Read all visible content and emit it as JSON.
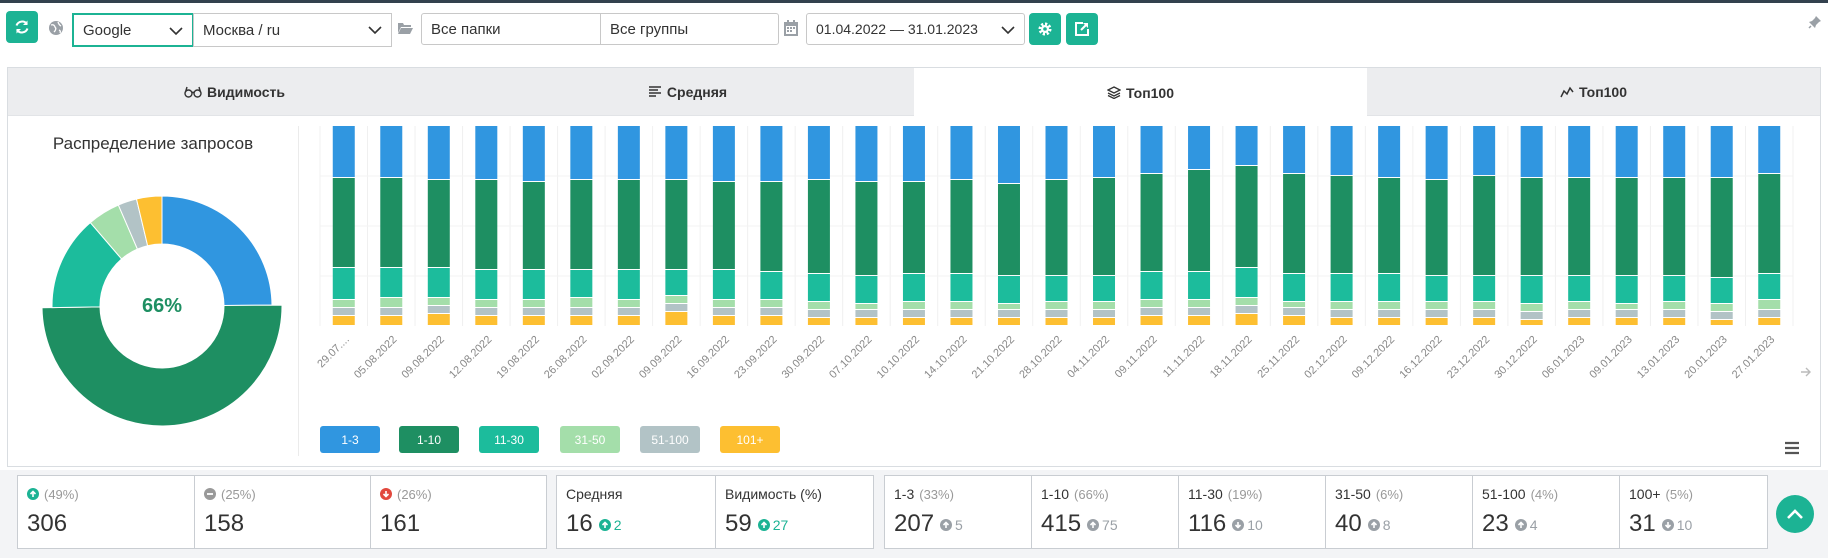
{
  "toolbar": {
    "search_engine": "Google",
    "region": "Москва / ru",
    "folders": "Все папки",
    "groups": "Все группы",
    "date_range": "01.04.2022 — 31.01.2023"
  },
  "tabs": [
    {
      "label": "Видимость",
      "icon": "glasses-icon"
    },
    {
      "label": "Средняя",
      "icon": "sort-lines-icon"
    },
    {
      "label": "Топ100",
      "icon": "layers-icon"
    },
    {
      "label": "Топ100",
      "icon": "line-chart-icon"
    }
  ],
  "active_tab": 2,
  "pie": {
    "title": "Распределение запросов",
    "center_label": "66%",
    "slices": [
      {
        "name": "1-3",
        "value": 207,
        "color": "#3096e0"
      },
      {
        "name": "1-10",
        "value": 415,
        "color": "#1e8f62"
      },
      {
        "name": "11-30",
        "value": 116,
        "color": "#1cbc9c"
      },
      {
        "name": "31-50",
        "value": 40,
        "color": "#a4deaa"
      },
      {
        "name": "51-100",
        "value": 23,
        "color": "#b2c3c6"
      },
      {
        "name": "101+",
        "value": 31,
        "color": "#fdbf31"
      }
    ]
  },
  "chart_data": {
    "type": "bar",
    "stacked": true,
    "categories": [
      "29.07....",
      "05.08.2022",
      "09.08.2022",
      "12.08.2022",
      "19.08.2022",
      "26.08.2022",
      "02.09.2022",
      "09.09.2022",
      "16.09.2022",
      "23.09.2022",
      "30.09.2022",
      "07.10.2022",
      "10.10.2022",
      "14.10.2022",
      "21.10.2022",
      "28.10.2022",
      "04.11.2022",
      "09.11.2022",
      "11.11.2022",
      "18.11.2022",
      "25.11.2022",
      "02.12.2022",
      "09.12.2022",
      "16.12.2022",
      "23.12.2022",
      "30.12.2022",
      "06.01.2023",
      "09.01.2023",
      "13.01.2023",
      "20.01.2023",
      "27.01.2023"
    ],
    "series": [
      {
        "name": "101+",
        "color": "#fdbf31",
        "values": [
          5,
          5,
          6,
          5,
          5,
          5,
          5,
          7,
          5,
          5,
          4,
          4,
          4,
          4,
          4,
          4,
          4,
          5,
          5,
          6,
          5,
          4,
          4,
          4,
          4,
          3,
          4,
          4,
          4,
          3,
          4
        ]
      },
      {
        "name": "51-100",
        "color": "#b2c3c6",
        "values": [
          4,
          4,
          4,
          4,
          4,
          4,
          4,
          4,
          4,
          4,
          4,
          4,
          4,
          4,
          4,
          4,
          4,
          4,
          4,
          4,
          4,
          4,
          4,
          4,
          4,
          4,
          4,
          4,
          4,
          4,
          4
        ]
      },
      {
        "name": "31-50",
        "color": "#a4deaa",
        "values": [
          4,
          5,
          4,
          4,
          4,
          5,
          4,
          4,
          4,
          4,
          4,
          3,
          4,
          4,
          3,
          4,
          4,
          4,
          4,
          4,
          3,
          4,
          4,
          4,
          4,
          4,
          4,
          3,
          4,
          4,
          5
        ]
      },
      {
        "name": "11-30",
        "color": "#1cbc9c",
        "values": [
          16,
          15,
          15,
          15,
          15,
          14,
          15,
          13,
          15,
          14,
          14,
          14,
          14,
          14,
          14,
          13,
          13,
          14,
          14,
          15,
          14,
          14,
          14,
          13,
          13,
          14,
          13,
          14,
          13,
          13,
          13
        ]
      },
      {
        "name": "1-10",
        "color": "#1e8f62",
        "values": [
          45,
          45,
          44,
          45,
          44,
          45,
          45,
          45,
          44,
          45,
          47,
          47,
          46,
          47,
          46,
          48,
          49,
          49,
          51,
          51,
          50,
          49,
          48,
          48,
          50,
          49,
          49,
          49,
          49,
          50,
          50
        ]
      },
      {
        "name": "1-3",
        "color": "#3096e0",
        "values": [
          26,
          26,
          27,
          27,
          28,
          27,
          27,
          27,
          28,
          28,
          27,
          28,
          28,
          27,
          29,
          27,
          26,
          24,
          22,
          20,
          24,
          25,
          26,
          27,
          25,
          26,
          26,
          26,
          26,
          26,
          24
        ]
      }
    ],
    "legend_position": "bottom-left",
    "legend": [
      {
        "label": "1-3",
        "color": "#3096e0"
      },
      {
        "label": "1-10",
        "color": "#1e8f62"
      },
      {
        "label": "11-30",
        "color": "#1cbc9c"
      },
      {
        "label": "31-50",
        "color": "#a4deaa"
      },
      {
        "label": "51-100",
        "color": "#b2c3c6"
      },
      {
        "label": "101+",
        "color": "#fdbf31"
      }
    ]
  },
  "stats": {
    "movement": [
      {
        "pct": "(49%)",
        "value": "306",
        "icon": "arrow-up-circle-icon",
        "color": "#1cb394"
      },
      {
        "pct": "(25%)",
        "value": "158",
        "icon": "minus-circle-icon",
        "color": "#999999"
      },
      {
        "pct": "(26%)",
        "value": "161",
        "icon": "arrow-down-circle-icon",
        "color": "#e2483d"
      }
    ],
    "metrics": [
      {
        "label": "Средняя",
        "value": "16",
        "delta": "2"
      },
      {
        "label": "Видимость (%)",
        "value": "59",
        "delta": "27"
      }
    ],
    "ranges": [
      {
        "label": "1-3",
        "pct": "(33%)",
        "value": "207",
        "delta": "5",
        "dir": "up"
      },
      {
        "label": "1-10",
        "pct": "(66%)",
        "value": "415",
        "delta": "75",
        "dir": "up"
      },
      {
        "label": "11-30",
        "pct": "(19%)",
        "value": "116",
        "delta": "10",
        "dir": "down"
      },
      {
        "label": "31-50",
        "pct": "(6%)",
        "value": "40",
        "delta": "8",
        "dir": "up"
      },
      {
        "label": "51-100",
        "pct": "(4%)",
        "value": "23",
        "delta": "4",
        "dir": "up"
      },
      {
        "label": "100+",
        "pct": "(5%)",
        "value": "31",
        "delta": "10",
        "dir": "down"
      }
    ]
  }
}
